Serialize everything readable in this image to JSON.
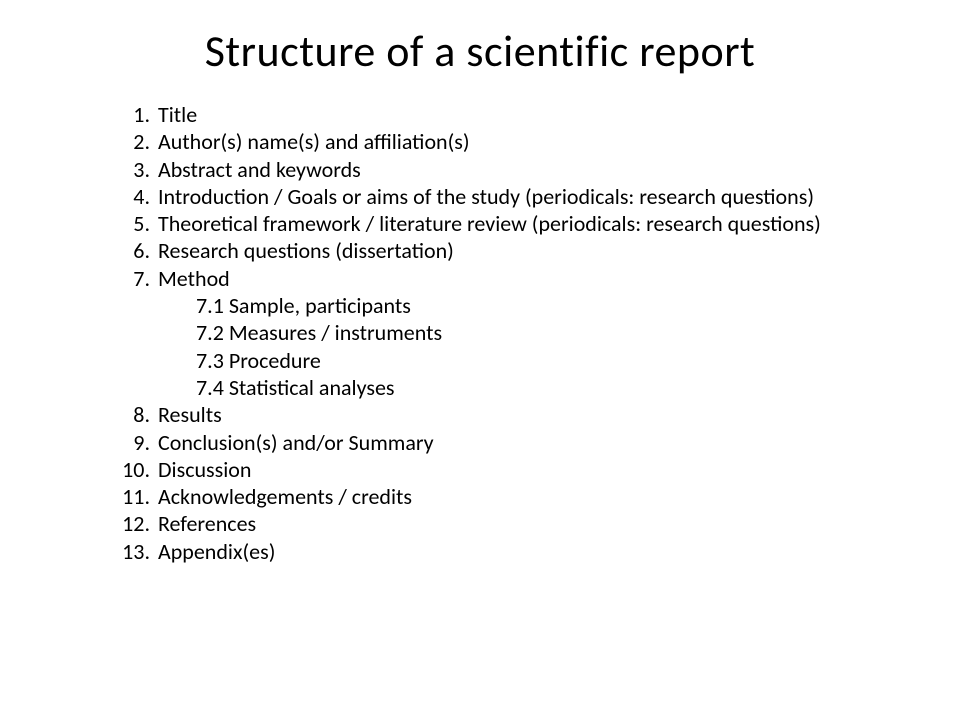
{
  "title": "Structure of a scientific report",
  "items": [
    {
      "text": "Title"
    },
    {
      "text": "Author(s) name(s) and affiliation(s)"
    },
    {
      "text": "Abstract and keywords"
    },
    {
      "text": "Introduction / Goals or aims of the study (periodicals: research questions)"
    },
    {
      "text": "Theoretical framework / literature review (periodicals: research questions)"
    },
    {
      "text": "Research questions (dissertation)"
    },
    {
      "text": "Method",
      "sub": [
        "7.1 Sample, participants",
        "7.2 Measures / instruments",
        "7.3 Procedure",
        "7.4 Statistical analyses"
      ]
    },
    {
      "text": "Results"
    },
    {
      "text": "Conclusion(s) and/or Summary"
    },
    {
      "text": "Discussion"
    },
    {
      "text": "Acknowledgements / credits"
    },
    {
      "text": "References"
    },
    {
      "text": "Appendix(es)"
    }
  ],
  "style": {
    "background_color": "#ffffff",
    "text_color": "#000000",
    "title_fontsize": 44,
    "body_fontsize": 22,
    "font_family": "Calibri"
  }
}
